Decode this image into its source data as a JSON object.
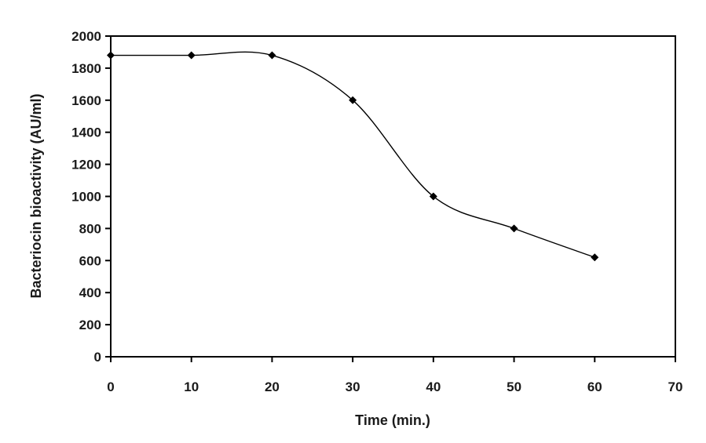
{
  "chart_data": {
    "type": "line",
    "title": "",
    "xlabel": "Time (min.)",
    "ylabel": "Bacteriocin bioactivity (AU/ml)",
    "xlim": [
      0,
      70
    ],
    "ylim": [
      0,
      2000
    ],
    "x_ticks": [
      "0",
      "10",
      "20",
      "30",
      "40",
      "50",
      "60",
      "70"
    ],
    "y_ticks": [
      "0",
      "200",
      "400",
      "600",
      "800",
      "1000",
      "1200",
      "1400",
      "1600",
      "1800",
      "2000"
    ],
    "grid": false,
    "legend": "none",
    "smooth": true,
    "marker": "diamond",
    "series": [
      {
        "x": [
          0,
          10,
          20,
          30,
          40,
          50,
          60
        ],
        "values": [
          1880,
          1880,
          1880,
          1600,
          1000,
          800,
          620
        ],
        "color": "#000000"
      }
    ]
  }
}
